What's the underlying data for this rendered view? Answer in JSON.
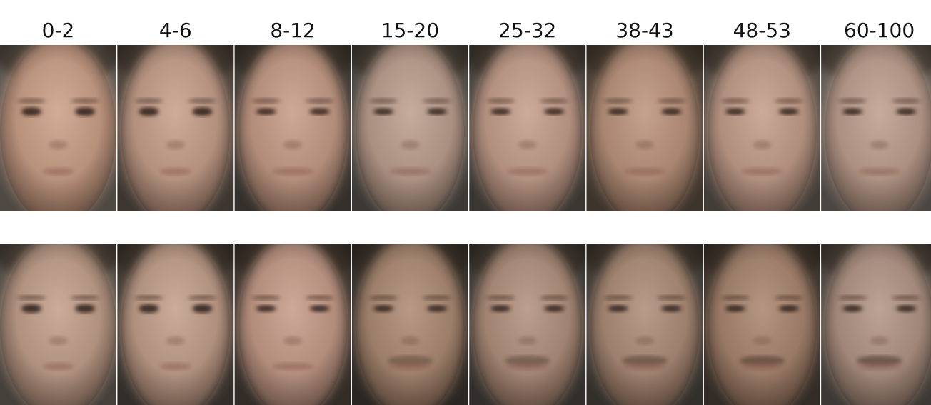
{
  "column_labels": [
    "0-2",
    "4-6",
    "8-12",
    "15-20",
    "25-32",
    "38-43",
    "48-53",
    "60-100"
  ]
}
